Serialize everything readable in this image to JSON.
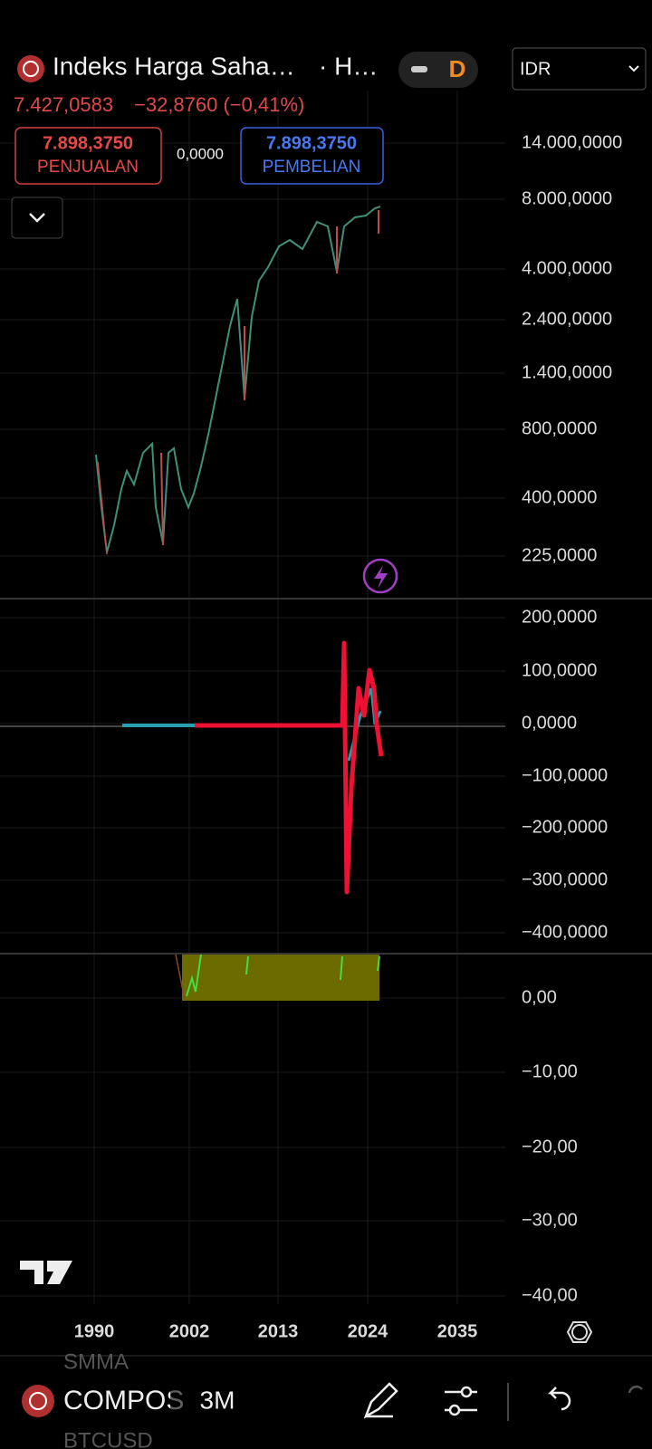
{
  "header": {
    "symbol": "Indeks Harga Saha…",
    "exchange": "· H…",
    "interval_badge": "D",
    "currency": "IDR"
  },
  "quote": {
    "last": "7.427,0583",
    "change": "−32,8760 (−0,41%)",
    "sell_price": "7.898,3750",
    "sell_label": "PENJUALAN",
    "spread": "0,0000",
    "buy_price": "7.898,3750",
    "buy_label": "PEMBELIAN"
  },
  "price_axis": [
    "14.000,0000",
    "8.000,0000",
    "4.000,0000",
    "2.400,0000",
    "1.400,0000",
    "800,0000",
    "400,0000",
    "225,0000"
  ],
  "oscillator_axis": [
    "200,0000",
    "100,0000",
    "0,0000",
    "−100,0000",
    "−200,0000",
    "−300,0000",
    "−400,0000"
  ],
  "indicator_axis": [
    "0,00",
    "−10,00",
    "−20,00",
    "−30,00",
    "−40,00"
  ],
  "time_axis": [
    "1990",
    "2002",
    "2013",
    "2024",
    "2035"
  ],
  "bottom_bar": {
    "watchlist_prev": "SMMA",
    "symbol": "COMPOS",
    "interval": "3M",
    "watchlist_next": "BTCUSD"
  }
}
